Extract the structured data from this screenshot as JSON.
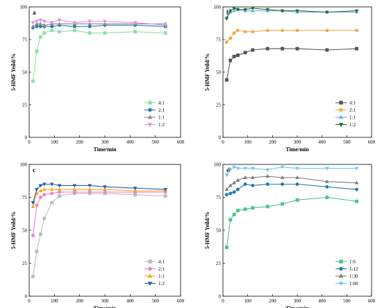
{
  "chart_data": [
    {
      "type": "line",
      "panel_label": "a",
      "xlabel": "Time/min",
      "ylabel": "5-HMF Yeild/%",
      "xlim": [
        0,
        600
      ],
      "ylim": [
        0,
        100
      ],
      "xticks": [
        0,
        100,
        200,
        300,
        400,
        500,
        600
      ],
      "yticks": [
        0,
        25,
        50,
        75,
        100
      ],
      "grid": false,
      "legend_position": "bottom-right",
      "series": [
        {
          "name": "4:1",
          "color": "#8fe0a8",
          "marker": "square",
          "x": [
            15,
            30,
            45,
            60,
            90,
            120,
            180,
            240,
            300,
            420,
            540
          ],
          "y": [
            43,
            66,
            77,
            80,
            82,
            81,
            82,
            80,
            80,
            81,
            80
          ]
        },
        {
          "name": "2:1",
          "color": "#1f7fa6",
          "marker": "circle",
          "x": [
            15,
            30,
            45,
            60,
            90,
            120,
            180,
            240,
            300,
            420,
            540
          ],
          "y": [
            84,
            85,
            85,
            85,
            85,
            86,
            85,
            85,
            86,
            86,
            85
          ]
        },
        {
          "name": "1:1",
          "color": "#8c8c8c",
          "marker": "triangle-up",
          "x": [
            15,
            30,
            45,
            60,
            90,
            120,
            180,
            240,
            300,
            420,
            540
          ],
          "y": [
            85,
            87,
            87,
            86,
            87,
            87,
            87,
            87,
            87,
            87,
            87
          ]
        },
        {
          "name": "1:2",
          "color": "#e58fe2",
          "marker": "triangle-down",
          "x": [
            15,
            30,
            45,
            60,
            90,
            120,
            180,
            240,
            300,
            420,
            540
          ],
          "y": [
            88,
            89,
            90,
            89,
            88,
            90,
            88,
            89,
            89,
            88,
            86
          ]
        }
      ]
    },
    {
      "type": "line",
      "panel_label": "b",
      "xlabel": "Time/min",
      "ylabel": "5-HMF Yeild/%",
      "xlim": [
        0,
        600
      ],
      "ylim": [
        0,
        100
      ],
      "xticks": [
        0,
        100,
        200,
        300,
        400,
        500,
        600
      ],
      "yticks": [
        0,
        25,
        50,
        75,
        100
      ],
      "grid": false,
      "legend_position": "bottom-right",
      "series": [
        {
          "name": "4:1",
          "color": "#555555",
          "marker": "square",
          "x": [
            15,
            30,
            45,
            60,
            90,
            120,
            180,
            240,
            300,
            420,
            540
          ],
          "y": [
            44,
            59,
            62,
            63,
            65,
            67,
            68,
            68,
            68,
            67,
            68
          ]
        },
        {
          "name": "2:1",
          "color": "#f2a94c",
          "marker": "circle",
          "x": [
            15,
            30,
            45,
            60,
            90,
            120,
            180,
            240,
            300,
            420,
            540
          ],
          "y": [
            73,
            76,
            80,
            82,
            81,
            81,
            82,
            82,
            82,
            82,
            82
          ]
        },
        {
          "name": "1:1",
          "color": "#6fb1e8",
          "marker": "triangle-up",
          "x": [
            15,
            30,
            45,
            60,
            90,
            120,
            180,
            240,
            300,
            420,
            540
          ],
          "y": [
            92,
            96,
            97,
            98,
            97,
            97,
            97,
            97,
            96,
            96,
            96
          ]
        },
        {
          "name": "1:2",
          "color": "#1e6e3a",
          "marker": "triangle-down",
          "x": [
            15,
            30,
            45,
            60,
            90,
            120,
            180,
            240,
            300,
            420,
            540
          ],
          "y": [
            91,
            97,
            99,
            98,
            98,
            99,
            98,
            97,
            97,
            96,
            97
          ]
        }
      ]
    },
    {
      "type": "line",
      "panel_label": "c",
      "xlabel": "Time/min",
      "ylabel": "5-HMF Yeild/%",
      "xlim": [
        0,
        600
      ],
      "ylim": [
        0,
        100
      ],
      "xticks": [
        0,
        100,
        200,
        300,
        400,
        500,
        600
      ],
      "yticks": [
        0,
        25,
        50,
        75,
        100
      ],
      "grid": false,
      "legend_position": "bottom-right",
      "series": [
        {
          "name": "4:1",
          "color": "#bdbdbd",
          "marker": "square",
          "x": [
            15,
            30,
            45,
            60,
            90,
            120,
            180,
            240,
            300,
            420,
            540
          ],
          "y": [
            15,
            34,
            47,
            59,
            71,
            76,
            78,
            78,
            78,
            77,
            76
          ]
        },
        {
          "name": "2:1",
          "color": "#ef7fc9",
          "marker": "circle",
          "x": [
            15,
            30,
            45,
            60,
            90,
            120,
            180,
            240,
            300,
            420,
            540
          ],
          "y": [
            46,
            69,
            75,
            77,
            78,
            79,
            79,
            79,
            79,
            79,
            79
          ]
        },
        {
          "name": "1:1",
          "color": "#f5a623",
          "marker": "triangle-up",
          "x": [
            15,
            30,
            45,
            60,
            90,
            120,
            180,
            240,
            300,
            420,
            540
          ],
          "y": [
            68,
            78,
            80,
            81,
            81,
            81,
            81,
            81,
            81,
            80,
            80
          ]
        },
        {
          "name": "1:2",
          "color": "#1f5fa8",
          "marker": "triangle-down",
          "x": [
            15,
            30,
            45,
            60,
            90,
            120,
            180,
            240,
            300,
            420,
            540
          ],
          "y": [
            71,
            81,
            84,
            85,
            85,
            84,
            84,
            84,
            83,
            82,
            81
          ]
        }
      ]
    },
    {
      "type": "line",
      "panel_label": "d",
      "xlabel": "Time/min",
      "ylabel": "5-HMF Yeild/%",
      "xlim": [
        0,
        600
      ],
      "ylim": [
        0,
        100
      ],
      "xticks": [
        0,
        100,
        200,
        300,
        400,
        500,
        600
      ],
      "yticks": [
        0,
        25,
        50,
        75,
        100
      ],
      "grid": false,
      "legend_position": "bottom-right",
      "series": [
        {
          "name": "1:6",
          "color": "#4fc28a",
          "marker": "square",
          "x": [
            15,
            30,
            45,
            60,
            90,
            120,
            180,
            240,
            300,
            420,
            540
          ],
          "y": [
            37,
            58,
            62,
            65,
            66,
            67,
            68,
            70,
            73,
            75,
            72
          ]
        },
        {
          "name": "1:12",
          "color": "#1d79b0",
          "marker": "circle",
          "x": [
            15,
            30,
            45,
            60,
            90,
            120,
            180,
            240,
            300,
            420,
            540
          ],
          "y": [
            77,
            78,
            79,
            81,
            85,
            84,
            85,
            85,
            85,
            83,
            81
          ]
        },
        {
          "name": "1:30",
          "color": "#7a7a7a",
          "marker": "triangle-up",
          "x": [
            15,
            30,
            45,
            60,
            90,
            120,
            180,
            240,
            300,
            420,
            540
          ],
          "y": [
            81,
            84,
            86,
            88,
            90,
            90,
            91,
            90,
            90,
            87,
            86
          ]
        },
        {
          "name": "1:60",
          "color": "#6ec8ec",
          "marker": "triangle-down",
          "x": [
            15,
            30,
            45,
            60,
            90,
            120,
            180,
            240,
            300,
            420,
            540
          ],
          "y": [
            92,
            96,
            98,
            97,
            97,
            97,
            96,
            98,
            97,
            97,
            97
          ]
        }
      ]
    }
  ]
}
